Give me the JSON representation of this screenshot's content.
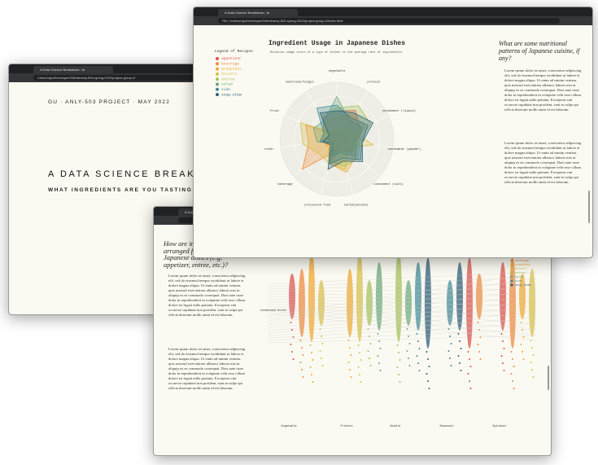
{
  "back_window": {
    "tab": "A Data Science Breakdown: Ja",
    "url": "/Users/rqiu/Developer/GitHub/anly-503-spring-2022/project-group-2/",
    "kicker": "GU · ANLY-503 PROJECT · MAY 2022",
    "title": "A DATA SCIENCE BREAKD",
    "subtitle": "WHAT INGREDIENTS ARE YOU TASTING IN AU"
  },
  "middle_window": {
    "tab": "A Data",
    "question_lines": [
      "How are in",
      "arranged fo",
      "Japanese dishes (e.g.",
      "appetizer, entree, etc.)?"
    ],
    "paragraphs": [
      "Lorem ipsum dolor sit amet, consectetur adipiscing elit, sed do eiusmod tempor incididunt ut labore et dolore magna aliqua. Ut enim ad minim veniam, quis nostrud exercitation ullamco laboris nisi ut aliquip ex ea commodo consequat. Duis aute irure dolor in reprehenderit in voluptate velit esse cillum dolore eu fugiat nulla pariatur. Excepteur sint occaecat cupidatat non proident, sunt in culpa qui officia deserunt mollit anim id est laborum.",
      "Lorem ipsum dolor sit amet, consectetur adipiscing elit, sed do eiusmod tempor incididunt ut labore et dolore magna aliqua. Ut enim ad minim veniam, quis nostrud exercitation ullamco laboris nisi ut aliquip ex ea commodo consequat. Duis aute irure dolor in reprehenderit in voluptate velit esse cillum dolore eu fugiat nulla pariatur. Excepteur sint occaecat cupidatat non proident, sunt in culpa qui officia deserunt mollit anim id est laborum."
    ],
    "legend": [
      "beverage",
      "breakfast",
      "dessert",
      "entree",
      "salad",
      "side",
      "soup_stew"
    ],
    "y_label": "Condensed Broth",
    "x_labels": [
      "Vegetable",
      "Protein",
      "Noodle",
      "Seasonal",
      "Optional"
    ]
  },
  "front_window": {
    "tab": "A Data Science Breakdown: Ja",
    "url": "File | /Users/rqiu/Developer/GitHub/anly-503-spring-2022/project-group-2/index.html",
    "question": "What are some nutritional patterns of Japanese cuisine, if any?",
    "paragraphs": [
      "Lorem ipsum dolor sit amet, consectetur adipiscing elit, sed do eiusmod tempor incididunt ut labore et dolore magna aliqua. Ut enim ad minim veniam, quis nostrud exercitation ullamco laboris nisi ut aliquip ex ea commodo consequat. Duis aute irure dolor in reprehenderit in voluptate velit esse cillum dolore eu fugiat nulla pariatur. Excepteur sint occaecat cupidatat non proident, sunt in culpa qui officia deserunt mollit anim id est laborum.",
      "Lorem ipsum dolor sit amet, consectetur adipiscing elit, sed do eiusmod tempor incididunt ut labore et dolore magna aliqua. Ut enim ad minim veniam, quis nostrud exercitation ullamco laboris nisi ut aliquip ex ea commodo consequat. Duis aute irure dolor in reprehenderit in voluptate velit esse cillum dolore eu fugiat nulla pariatur. Excepteur sint occaecat cupidatat non proident, sunt in culpa qui officia deserunt mollit anim id est laborum."
    ],
    "chart_data": {
      "type": "radar",
      "title": "Ingredient Usage in Japanese Dishes",
      "subtitle": "Relative usage score of a type of dishes to the average rate of ingredients.",
      "legend_title": "Legend of Recipes",
      "categories": [
        "vegetable",
        "protein",
        "condiment (liquid)",
        "condiment (powder)",
        "condiment (salt)",
        "carbohydrates",
        "processed food",
        "beverage",
        "other",
        "fruit",
        "mushroom/fungus"
      ],
      "rlim": [
        0,
        2
      ],
      "series": [
        {
          "name": "appetizer",
          "color": "#d9534f",
          "values": [
            1.0,
            1.2,
            0.9,
            0.6,
            0.7,
            0.4,
            0.8,
            0.3,
            0.6,
            0.5,
            0.9
          ]
        },
        {
          "name": "beverage",
          "color": "#ee8a3c",
          "values": [
            0.3,
            0.2,
            0.3,
            0.4,
            0.2,
            0.3,
            0.5,
            1.6,
            1.0,
            1.2,
            0.2
          ]
        },
        {
          "name": "breakfast",
          "color": "#f0a830",
          "values": [
            0.8,
            1.0,
            1.1,
            0.7,
            0.9,
            1.2,
            0.9,
            0.4,
            0.5,
            0.4,
            0.7
          ]
        },
        {
          "name": "dessert",
          "color": "#d8c04a",
          "values": [
            0.4,
            0.5,
            0.6,
            1.3,
            0.5,
            1.1,
            0.9,
            0.8,
            1.2,
            1.4,
            0.3
          ]
        },
        {
          "name": "entree",
          "color": "#a6c05a",
          "values": [
            1.1,
            1.4,
            1.3,
            0.8,
            1.0,
            1.0,
            0.8,
            0.3,
            0.5,
            0.4,
            1.0
          ]
        },
        {
          "name": "salad",
          "color": "#6aa97a",
          "values": [
            1.5,
            0.8,
            1.0,
            0.7,
            0.9,
            0.5,
            0.6,
            0.2,
            0.7,
            0.9,
            0.8
          ]
        },
        {
          "name": "side",
          "color": "#3f8a95",
          "values": [
            1.2,
            0.9,
            1.2,
            0.9,
            1.1,
            0.7,
            0.9,
            0.2,
            0.6,
            0.5,
            1.3
          ]
        },
        {
          "name": "soup_stew",
          "color": "#2f5f7a",
          "values": [
            1.0,
            1.1,
            1.4,
            0.9,
            1.2,
            0.8,
            1.1,
            0.3,
            0.5,
            0.3,
            1.1
          ]
        }
      ]
    }
  }
}
